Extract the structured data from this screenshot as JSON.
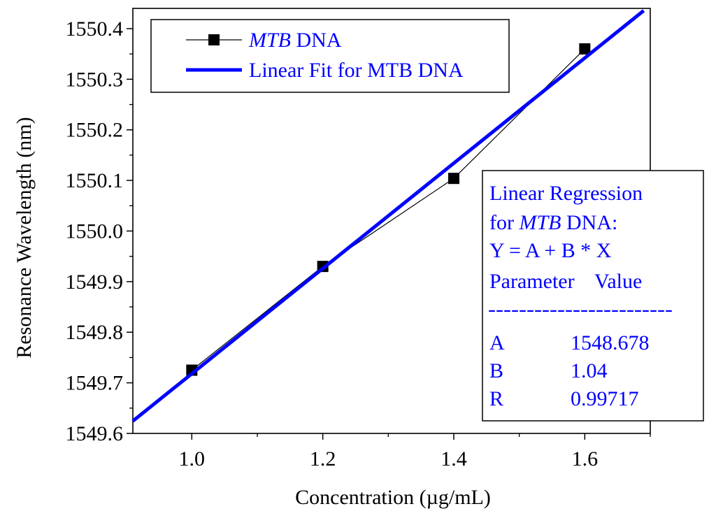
{
  "chart_data": {
    "type": "scatter",
    "xlabel": "Concentration (µg/mL)",
    "ylabel": "Resonance Wavelength (nm)",
    "xlim": [
      0.91,
      1.7
    ],
    "ylim": [
      1549.6,
      1550.44
    ],
    "x_ticks": [
      {
        "value": 1.0,
        "label": "1.0"
      },
      {
        "value": 1.2,
        "label": "1.2"
      },
      {
        "value": 1.4,
        "label": "1.4"
      },
      {
        "value": 1.6,
        "label": "1.6"
      }
    ],
    "y_ticks": [
      {
        "value": 1549.6,
        "label": "1549.6"
      },
      {
        "value": 1549.7,
        "label": "1549.7"
      },
      {
        "value": 1549.8,
        "label": "1549.8"
      },
      {
        "value": 1549.9,
        "label": "1549.9"
      },
      {
        "value": 1550.0,
        "label": "1550.0"
      },
      {
        "value": 1550.1,
        "label": "1550.1"
      },
      {
        "value": 1550.2,
        "label": "1550.2"
      },
      {
        "value": 1550.3,
        "label": "1550.3"
      },
      {
        "value": 1550.4,
        "label": "1550.4"
      }
    ],
    "series": [
      {
        "name_italic": "MTB",
        "name_rest": " DNA",
        "x": [
          1.0,
          1.2,
          1.4,
          1.6
        ],
        "y": [
          1549.725,
          1549.93,
          1550.104,
          1550.36
        ],
        "color": "#000000",
        "marker": "square"
      }
    ],
    "fit": {
      "name": "Linear Fit for MTB DNA",
      "intercept": 1548.678,
      "slope": 1.04,
      "x_range": [
        0.91,
        1.69
      ],
      "color": "#0000ff"
    },
    "legend_position": "top-left",
    "grid": false,
    "annotation": {
      "line1": "Linear Regression",
      "line2_prefix": "for ",
      "line2_italic": "MTB",
      "line2_suffix": " DNA:",
      "equation": "Y = A + B * X",
      "header_param": "Parameter",
      "header_value": "Value",
      "separator": "------------------------",
      "params": [
        {
          "name": "A",
          "value": "1548.678"
        },
        {
          "name": "B",
          "value": "1.04"
        },
        {
          "name": "R",
          "value": "0.99717"
        }
      ],
      "position": "bottom-right",
      "color": "#0000ff"
    }
  }
}
